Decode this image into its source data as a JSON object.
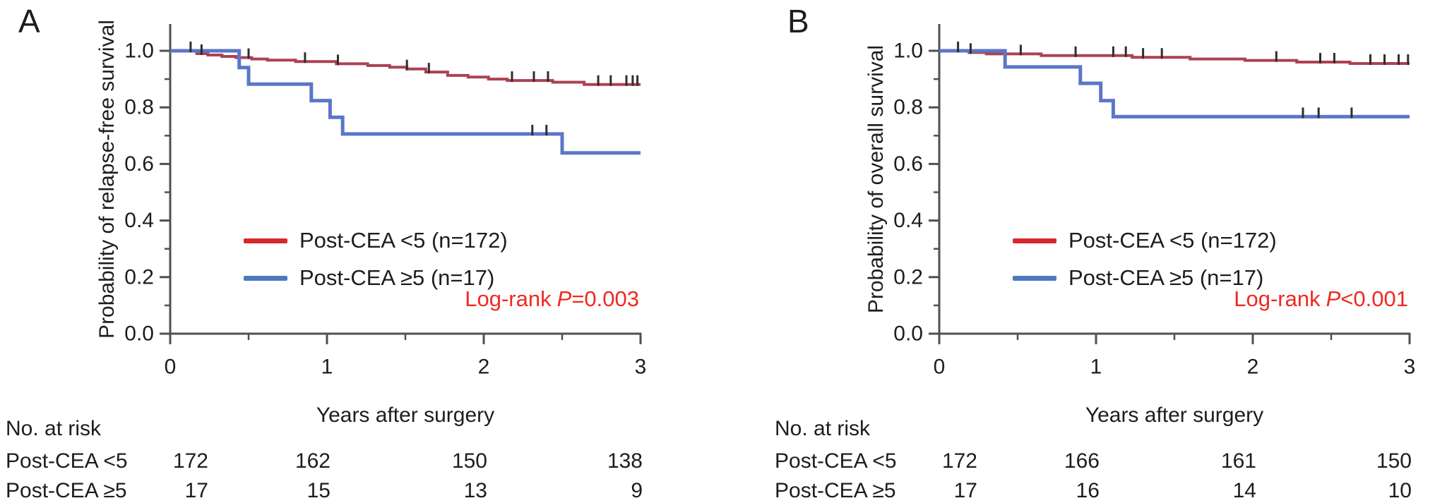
{
  "colors": {
    "curve_red": "#ac4154",
    "curve_blue": "#5b76c9",
    "legend_red": "#d7282d",
    "legend_blue": "#4b79c0",
    "pvalue": "#ee2a20",
    "axis": "#4f5052",
    "text": "#1d1d1f",
    "censor": "#2e2e2e"
  },
  "chart_data": [
    {
      "type": "line",
      "subtype": "kaplan-meier-step",
      "panel_label": "A",
      "ylabel": "Probability of relapse-free survival",
      "xlabel": "Years after surgery",
      "xlim": [
        0,
        3
      ],
      "ylim": [
        0.0,
        1.0
      ],
      "xticks": [
        0,
        1,
        2,
        3
      ],
      "xticks_minor": [
        0.5,
        1.5,
        2.5
      ],
      "yticks": [
        0.0,
        0.2,
        0.4,
        0.6,
        0.8,
        1.0
      ],
      "yticks_minor": [
        0.1,
        0.3,
        0.5,
        0.7,
        0.9
      ],
      "grid": false,
      "legend_position": "inside-left-lower",
      "logrank": {
        "prefix": "Log-rank",
        "var": "P",
        "rest": "=0.003"
      },
      "series": [
        {
          "name": "Post-CEA <5 (n=172)",
          "color_key": "red",
          "steps": [
            [
              0,
              1.0
            ],
            [
              0.17,
              0.99
            ],
            [
              0.24,
              0.985
            ],
            [
              0.33,
              0.98
            ],
            [
              0.42,
              0.976
            ],
            [
              0.52,
              0.971
            ],
            [
              0.62,
              0.967
            ],
            [
              0.8,
              0.962
            ],
            [
              1.06,
              0.954
            ],
            [
              1.26,
              0.948
            ],
            [
              1.4,
              0.942
            ],
            [
              1.51,
              0.936
            ],
            [
              1.63,
              0.925
            ],
            [
              1.77,
              0.913
            ],
            [
              1.9,
              0.907
            ],
            [
              2.03,
              0.9
            ],
            [
              2.15,
              0.895
            ],
            [
              2.44,
              0.889
            ],
            [
              2.64,
              0.881
            ]
          ],
          "censor_times": [
            0.13,
            0.2,
            0.5,
            0.86,
            1.07,
            1.51,
            1.65,
            2.18,
            2.32,
            2.41,
            2.73,
            2.81,
            2.91,
            2.95,
            2.98
          ],
          "value_at_3y": 0.88
        },
        {
          "name": "Post-CEA ≥5 (n=17)",
          "color_key": "blue",
          "steps": [
            [
              0,
              1.0
            ],
            [
              0.44,
              0.941
            ],
            [
              0.5,
              0.882
            ],
            [
              0.9,
              0.824
            ],
            [
              1.02,
              0.765
            ],
            [
              1.1,
              0.706
            ],
            [
              2.5,
              0.639
            ]
          ],
          "censor_times": [
            2.31,
            2.4
          ],
          "value_at_3y": 0.64
        }
      ],
      "risk_table": {
        "header": "No. at risk",
        "time_points": [
          0,
          1,
          2,
          3
        ],
        "rows": [
          {
            "label": "Post-CEA <5",
            "values": [
              "172",
              "162",
              "150",
              "138"
            ]
          },
          {
            "label": "Post-CEA ≥5",
            "values": [
              "17",
              "15",
              "13",
              "9"
            ]
          }
        ]
      }
    },
    {
      "type": "line",
      "subtype": "kaplan-meier-step",
      "panel_label": "B",
      "ylabel": "Probability of overall survival",
      "xlabel": "Years after surgery",
      "xlim": [
        0,
        3
      ],
      "ylim": [
        0.0,
        1.0
      ],
      "xticks": [
        0,
        1,
        2,
        3
      ],
      "xticks_minor": [
        0.5,
        1.5,
        2.5
      ],
      "yticks": [
        0.0,
        0.2,
        0.4,
        0.6,
        0.8,
        1.0
      ],
      "yticks_minor": [
        0.1,
        0.3,
        0.5,
        0.7,
        0.9
      ],
      "grid": false,
      "legend_position": "inside-left-lower",
      "logrank": {
        "prefix": "Log-rank",
        "var": "P",
        "rest": "<0.001"
      },
      "series": [
        {
          "name": "Post-CEA <5 (n=172)",
          "color_key": "red",
          "steps": [
            [
              0,
              1.0
            ],
            [
              0.19,
              0.994
            ],
            [
              0.3,
              0.989
            ],
            [
              0.65,
              0.983
            ],
            [
              1.23,
              0.977
            ],
            [
              1.6,
              0.971
            ],
            [
              1.95,
              0.966
            ],
            [
              2.28,
              0.96
            ],
            [
              2.62,
              0.955
            ]
          ],
          "censor_times": [
            0.12,
            0.2,
            0.52,
            0.87,
            1.11,
            1.19,
            1.3,
            1.42,
            2.15,
            2.43,
            2.52,
            2.75,
            2.84,
            2.93,
            2.99
          ],
          "value_at_3y": 0.96
        },
        {
          "name": "Post-CEA ≥5 (n=17)",
          "color_key": "blue",
          "steps": [
            [
              0,
              1.0
            ],
            [
              0.42,
              0.943
            ],
            [
              0.9,
              0.885
            ],
            [
              1.03,
              0.824
            ],
            [
              1.11,
              0.767
            ]
          ],
          "censor_times": [
            2.32,
            2.42,
            2.63
          ],
          "value_at_3y": 0.77
        }
      ],
      "risk_table": {
        "header": "No. at risk",
        "time_points": [
          0,
          1,
          2,
          3
        ],
        "rows": [
          {
            "label": "Post-CEA <5",
            "values": [
              "172",
              "166",
              "161",
              "150"
            ]
          },
          {
            "label": "Post-CEA ≥5",
            "values": [
              "17",
              "16",
              "14",
              "10"
            ]
          }
        ]
      }
    }
  ]
}
